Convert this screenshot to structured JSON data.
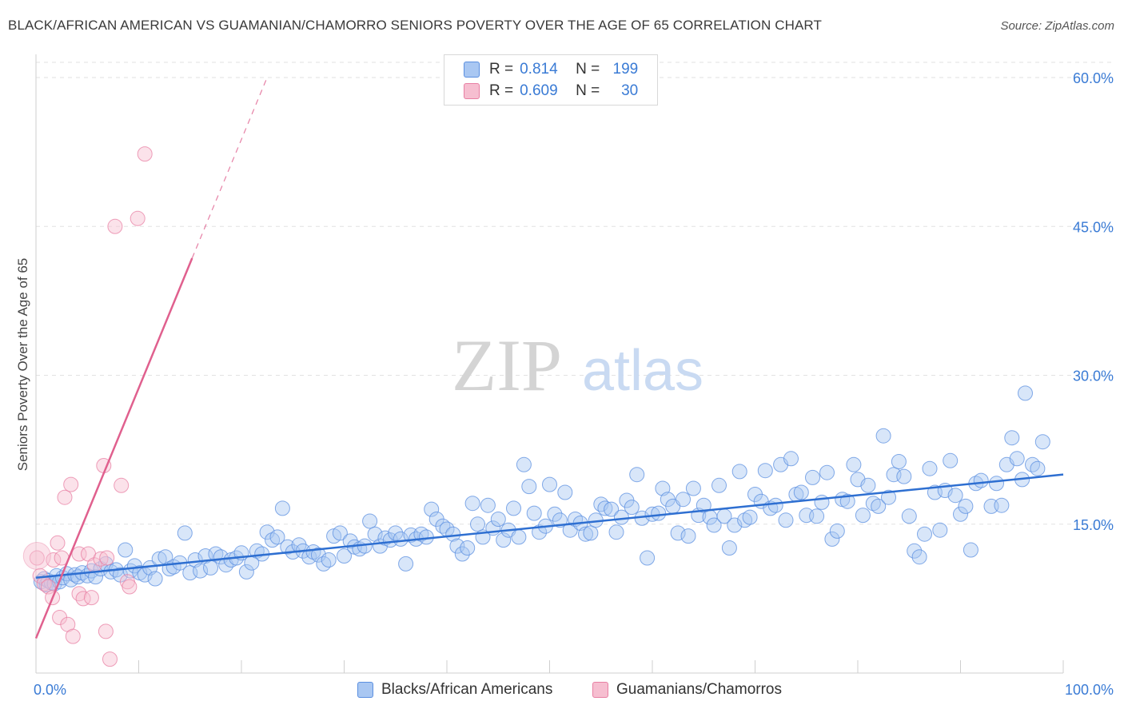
{
  "title": "BLACK/AFRICAN AMERICAN VS GUAMANIAN/CHAMORRO SENIORS POVERTY OVER THE AGE OF 65 CORRELATION CHART",
  "source": "Source: ZipAtlas.com",
  "watermark": {
    "zip": "ZIP",
    "atlas": "atlas"
  },
  "legend": {
    "rows": [
      {
        "r_label": "R =",
        "r_value": "0.814",
        "n_label": "N =",
        "n_value": "199",
        "color": "#5b8fe0"
      },
      {
        "r_label": "R =",
        "r_value": "0.609",
        "n_label": "N =",
        "n_value": "30",
        "color": "#e87fa3"
      }
    ]
  },
  "bottom_legend": [
    {
      "label": "Blacks/African Americans",
      "color": "#5b8fe0"
    },
    {
      "label": "Guamanians/Chamorros",
      "color": "#e87fa3"
    }
  ],
  "colors": {
    "blue": "#5b8fe0",
    "blue_fill": "#a9c7f2",
    "blue_line": "#2e6fd1",
    "pink": "#e87fa3",
    "pink_fill": "#f6bed0",
    "pink_line": "#e0608e",
    "axis_text": "#3a7bd5"
  },
  "chart_data": {
    "type": "scatter",
    "xlabel": "",
    "ylabel": "Seniors Poverty Over the Age of 65",
    "xlim": [
      0,
      100
    ],
    "ylim": [
      0,
      60
    ],
    "x_tick_labels": [
      "0.0%",
      "100.0%"
    ],
    "y_ticks": [
      15,
      30,
      45,
      60
    ],
    "y_tick_labels": [
      "15.0%",
      "30.0%",
      "45.0%",
      "60.0%"
    ],
    "grid": true,
    "legend_position": "top-center",
    "series": [
      {
        "name": "Blacks/African Americans",
        "trend": {
          "x": [
            0,
            100
          ],
          "y": [
            9.6,
            20.0
          ]
        },
        "points": [
          [
            0.5,
            9.2
          ],
          [
            0.8,
            9.5
          ],
          [
            1.0,
            8.9
          ],
          [
            1.2,
            9.3
          ],
          [
            1.5,
            9.1
          ],
          [
            1.8,
            9.0
          ],
          [
            2.0,
            9.8
          ],
          [
            2.3,
            9.2
          ],
          [
            2.6,
            9.6
          ],
          [
            3.0,
            10.0
          ],
          [
            3.4,
            9.4
          ],
          [
            3.8,
            9.9
          ],
          [
            4.1,
            9.7
          ],
          [
            4.5,
            10.1
          ],
          [
            5.0,
            9.8
          ],
          [
            5.4,
            10.3
          ],
          [
            5.8,
            9.7
          ],
          [
            6.3,
            10.5
          ],
          [
            6.8,
            11.0
          ],
          [
            7.3,
            10.2
          ],
          [
            7.8,
            10.4
          ],
          [
            8.2,
            9.9
          ],
          [
            8.7,
            12.4
          ],
          [
            9.2,
            10.3
          ],
          [
            9.6,
            10.8
          ],
          [
            10.1,
            10.1
          ],
          [
            10.6,
            9.9
          ],
          [
            11.1,
            10.6
          ],
          [
            11.6,
            9.5
          ],
          [
            12.0,
            11.5
          ],
          [
            12.6,
            11.7
          ],
          [
            13.0,
            10.5
          ],
          [
            13.4,
            10.7
          ],
          [
            14.0,
            11.1
          ],
          [
            14.5,
            14.1
          ],
          [
            15.0,
            10.1
          ],
          [
            15.5,
            11.4
          ],
          [
            16.0,
            10.3
          ],
          [
            16.5,
            11.8
          ],
          [
            17.0,
            10.6
          ],
          [
            17.5,
            12.0
          ],
          [
            18.0,
            11.7
          ],
          [
            18.5,
            10.9
          ],
          [
            19.0,
            11.4
          ],
          [
            19.5,
            11.6
          ],
          [
            20.0,
            12.1
          ],
          [
            20.5,
            10.2
          ],
          [
            21.0,
            11.1
          ],
          [
            21.5,
            12.3
          ],
          [
            22.0,
            12.0
          ],
          [
            22.5,
            14.2
          ],
          [
            23.0,
            13.4
          ],
          [
            23.5,
            13.7
          ],
          [
            24.0,
            16.6
          ],
          [
            24.5,
            12.7
          ],
          [
            25.0,
            12.2
          ],
          [
            25.6,
            12.9
          ],
          [
            26.0,
            12.3
          ],
          [
            26.6,
            11.7
          ],
          [
            27.0,
            12.2
          ],
          [
            27.5,
            11.9
          ],
          [
            28.0,
            11.0
          ],
          [
            28.5,
            11.4
          ],
          [
            29.0,
            13.8
          ],
          [
            29.6,
            14.1
          ],
          [
            30.0,
            11.8
          ],
          [
            30.6,
            13.3
          ],
          [
            31.0,
            12.7
          ],
          [
            31.5,
            12.5
          ],
          [
            32.0,
            12.8
          ],
          [
            32.5,
            15.3
          ],
          [
            33.0,
            14.0
          ],
          [
            33.5,
            12.8
          ],
          [
            34.0,
            13.6
          ],
          [
            34.5,
            13.4
          ],
          [
            35.0,
            14.1
          ],
          [
            35.5,
            13.5
          ],
          [
            36.0,
            11.0
          ],
          [
            36.5,
            13.9
          ],
          [
            37.0,
            13.5
          ],
          [
            37.5,
            14.0
          ],
          [
            38.0,
            13.7
          ],
          [
            38.5,
            16.5
          ],
          [
            39.0,
            15.5
          ],
          [
            39.6,
            14.8
          ],
          [
            40.0,
            14.5
          ],
          [
            40.6,
            14.0
          ],
          [
            41.0,
            12.8
          ],
          [
            41.5,
            12.0
          ],
          [
            42.0,
            12.6
          ],
          [
            42.5,
            17.1
          ],
          [
            43.0,
            15.0
          ],
          [
            43.5,
            13.7
          ],
          [
            44.0,
            16.9
          ],
          [
            44.5,
            14.6
          ],
          [
            45.0,
            15.5
          ],
          [
            45.5,
            13.4
          ],
          [
            46.0,
            14.4
          ],
          [
            46.5,
            16.6
          ],
          [
            47.0,
            13.7
          ],
          [
            47.5,
            21.0
          ],
          [
            48.0,
            18.8
          ],
          [
            48.5,
            16.1
          ],
          [
            49.0,
            14.2
          ],
          [
            49.6,
            14.8
          ],
          [
            50.0,
            19.0
          ],
          [
            50.5,
            16.0
          ],
          [
            51.0,
            15.4
          ],
          [
            51.5,
            18.2
          ],
          [
            52.0,
            14.4
          ],
          [
            52.5,
            15.5
          ],
          [
            53.0,
            15.1
          ],
          [
            53.5,
            14.0
          ],
          [
            54.0,
            14.1
          ],
          [
            54.5,
            15.4
          ],
          [
            55.0,
            17.0
          ],
          [
            55.4,
            16.6
          ],
          [
            56.0,
            16.5
          ],
          [
            56.5,
            14.2
          ],
          [
            57.0,
            15.7
          ],
          [
            57.5,
            17.4
          ],
          [
            58.0,
            16.7
          ],
          [
            58.5,
            20.0
          ],
          [
            59.0,
            15.6
          ],
          [
            59.5,
            11.6
          ],
          [
            60.0,
            16.0
          ],
          [
            60.6,
            16.1
          ],
          [
            61.0,
            18.6
          ],
          [
            61.5,
            17.5
          ],
          [
            62.0,
            16.8
          ],
          [
            62.5,
            14.1
          ],
          [
            63.0,
            17.5
          ],
          [
            63.5,
            13.8
          ],
          [
            64.0,
            18.6
          ],
          [
            64.5,
            15.9
          ],
          [
            65.0,
            16.9
          ],
          [
            65.6,
            15.7
          ],
          [
            66.0,
            14.9
          ],
          [
            66.5,
            18.9
          ],
          [
            67.0,
            15.8
          ],
          [
            67.5,
            12.6
          ],
          [
            68.0,
            14.9
          ],
          [
            68.5,
            20.3
          ],
          [
            69.0,
            15.4
          ],
          [
            69.5,
            15.7
          ],
          [
            70.0,
            18.0
          ],
          [
            70.6,
            17.3
          ],
          [
            71.0,
            20.4
          ],
          [
            71.5,
            16.6
          ],
          [
            72.0,
            16.9
          ],
          [
            72.5,
            21.0
          ],
          [
            73.0,
            15.4
          ],
          [
            73.5,
            21.6
          ],
          [
            74.0,
            18.0
          ],
          [
            74.5,
            18.2
          ],
          [
            75.0,
            15.9
          ],
          [
            75.6,
            19.7
          ],
          [
            76.0,
            15.8
          ],
          [
            76.5,
            17.2
          ],
          [
            77.0,
            20.2
          ],
          [
            77.5,
            13.5
          ],
          [
            78.0,
            14.3
          ],
          [
            78.5,
            17.5
          ],
          [
            79.0,
            17.3
          ],
          [
            79.6,
            21.0
          ],
          [
            80.0,
            19.5
          ],
          [
            80.5,
            15.9
          ],
          [
            81.0,
            18.9
          ],
          [
            81.5,
            17.1
          ],
          [
            82.0,
            16.8
          ],
          [
            82.5,
            23.9
          ],
          [
            83.0,
            17.7
          ],
          [
            83.5,
            20.0
          ],
          [
            84.0,
            21.3
          ],
          [
            84.5,
            19.8
          ],
          [
            85.0,
            15.8
          ],
          [
            85.5,
            12.3
          ],
          [
            86.0,
            11.7
          ],
          [
            86.5,
            14.0
          ],
          [
            87.0,
            20.6
          ],
          [
            87.5,
            18.2
          ],
          [
            88.0,
            14.4
          ],
          [
            88.5,
            18.4
          ],
          [
            89.0,
            21.4
          ],
          [
            89.5,
            17.9
          ],
          [
            90.0,
            16.0
          ],
          [
            90.5,
            16.8
          ],
          [
            91.0,
            12.4
          ],
          [
            91.5,
            19.1
          ],
          [
            92.0,
            19.4
          ],
          [
            93.0,
            16.8
          ],
          [
            93.5,
            19.1
          ],
          [
            94.0,
            16.9
          ],
          [
            94.5,
            21.0
          ],
          [
            95.0,
            23.7
          ],
          [
            95.5,
            21.6
          ],
          [
            96.0,
            19.5
          ],
          [
            96.3,
            28.2
          ],
          [
            97.0,
            21.0
          ],
          [
            97.5,
            20.6
          ],
          [
            98.0,
            23.3
          ]
        ]
      },
      {
        "name": "Guamanians/Chamorros",
        "trend": {
          "x": [
            0,
            15.2
          ],
          "y": [
            3.5,
            41.8
          ]
        },
        "trend_dashed": {
          "x": [
            15.2,
            22.5
          ],
          "y": [
            41.8,
            60.0
          ]
        },
        "points": [
          [
            0.1,
            11.6
          ],
          [
            0.4,
            9.8
          ],
          [
            0.8,
            9.0
          ],
          [
            1.2,
            8.7
          ],
          [
            1.6,
            7.6
          ],
          [
            1.7,
            11.4
          ],
          [
            2.1,
            13.1
          ],
          [
            2.3,
            5.6
          ],
          [
            2.5,
            11.6
          ],
          [
            2.8,
            17.7
          ],
          [
            3.1,
            4.9
          ],
          [
            3.4,
            19.0
          ],
          [
            3.6,
            3.7
          ],
          [
            4.2,
            12.0
          ],
          [
            4.2,
            8.0
          ],
          [
            4.6,
            7.5
          ],
          [
            5.1,
            12.0
          ],
          [
            5.4,
            7.6
          ],
          [
            5.7,
            10.9
          ],
          [
            6.3,
            11.5
          ],
          [
            6.6,
            20.9
          ],
          [
            6.8,
            4.2
          ],
          [
            7.2,
            1.4
          ],
          [
            7.7,
            45.0
          ],
          [
            8.3,
            18.9
          ],
          [
            8.9,
            9.2
          ],
          [
            9.1,
            8.7
          ],
          [
            9.9,
            45.8
          ],
          [
            10.6,
            52.3
          ],
          [
            6.9,
            11.6
          ]
        ]
      }
    ]
  }
}
